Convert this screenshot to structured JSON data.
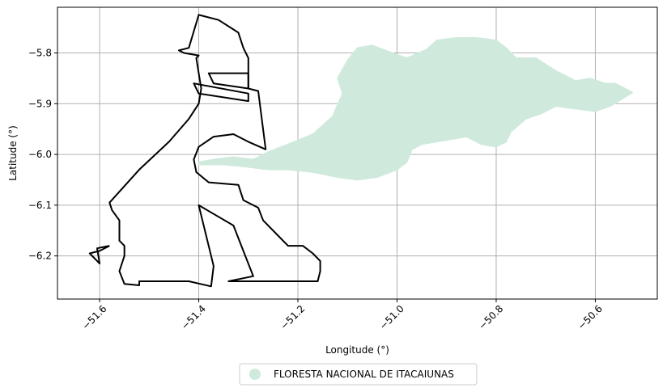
{
  "map": {
    "xlabel": "Longitude (°)",
    "ylabel": "Latitude (°)",
    "xlim": [
      -51.685,
      -50.475
    ],
    "ylim": [
      -6.285,
      -5.71
    ],
    "grid": true,
    "x_ticks": [
      -51.6,
      -51.4,
      -51.2,
      -51.0,
      -50.8,
      -50.6
    ],
    "x_tick_labels": [
      "−51.6",
      "−51.4",
      "−51.2",
      "−51.0",
      "−50.8",
      "−50.6"
    ],
    "y_ticks": [
      -5.8,
      -5.9,
      -6.0,
      -6.1,
      -6.2
    ],
    "y_tick_labels": [
      "−5.8",
      "−5.9",
      "−6.0",
      "−6.1",
      "−6.2"
    ],
    "x_tick_rotation": 45,
    "legend": {
      "placement": "below",
      "entries": [
        {
          "label": "FLORESTA NACIONAL DE ITACAIUNAS",
          "color": "#cfeadc",
          "marker": "circle"
        }
      ]
    },
    "colors": {
      "forest_fill": "#cfeadc",
      "outline": "#000000",
      "grid": "#b0b0b0"
    }
  },
  "chart_data": {
    "type": "map",
    "features": [
      {
        "name": "FLORESTA NACIONAL DE ITACAIUNAS",
        "kind": "polygon",
        "style": "filled",
        "coords": [
          [
            -51.4,
            -6.015
          ],
          [
            -51.37,
            -6.01
          ],
          [
            -51.33,
            -6.005
          ],
          [
            -51.29,
            -6.01
          ],
          [
            -51.26,
            -5.995
          ],
          [
            -51.22,
            -5.98
          ],
          [
            -51.17,
            -5.96
          ],
          [
            -51.13,
            -5.925
          ],
          [
            -51.11,
            -5.88
          ],
          [
            -51.12,
            -5.85
          ],
          [
            -51.1,
            -5.815
          ],
          [
            -51.08,
            -5.79
          ],
          [
            -51.05,
            -5.785
          ],
          [
            -51.01,
            -5.8
          ],
          [
            -50.98,
            -5.81
          ],
          [
            -50.94,
            -5.793
          ],
          [
            -50.92,
            -5.775
          ],
          [
            -50.88,
            -5.77
          ],
          [
            -50.84,
            -5.77
          ],
          [
            -50.8,
            -5.775
          ],
          [
            -50.78,
            -5.79
          ],
          [
            -50.76,
            -5.81
          ],
          [
            -50.72,
            -5.81
          ],
          [
            -50.68,
            -5.835
          ],
          [
            -50.64,
            -5.855
          ],
          [
            -50.61,
            -5.85
          ],
          [
            -50.58,
            -5.86
          ],
          [
            -50.56,
            -5.86
          ],
          [
            -50.54,
            -5.87
          ],
          [
            -50.525,
            -5.878
          ],
          [
            -50.545,
            -5.89
          ],
          [
            -50.57,
            -5.905
          ],
          [
            -50.6,
            -5.915
          ],
          [
            -50.64,
            -5.91
          ],
          [
            -50.68,
            -5.905
          ],
          [
            -50.71,
            -5.92
          ],
          [
            -50.74,
            -5.93
          ],
          [
            -50.77,
            -5.955
          ],
          [
            -50.78,
            -5.975
          ],
          [
            -50.8,
            -5.985
          ],
          [
            -50.83,
            -5.98
          ],
          [
            -50.86,
            -5.965
          ],
          [
            -50.89,
            -5.97
          ],
          [
            -50.92,
            -5.975
          ],
          [
            -50.95,
            -5.98
          ],
          [
            -50.97,
            -5.99
          ],
          [
            -50.98,
            -6.015
          ],
          [
            -51.0,
            -6.03
          ],
          [
            -51.04,
            -6.045
          ],
          [
            -51.08,
            -6.05
          ],
          [
            -51.12,
            -6.045
          ],
          [
            -51.17,
            -6.035
          ],
          [
            -51.22,
            -6.03
          ],
          [
            -51.26,
            -6.03
          ],
          [
            -51.3,
            -6.025
          ],
          [
            -51.35,
            -6.02
          ],
          [
            -51.4,
            -6.02
          ]
        ]
      },
      {
        "name": "outline-main",
        "kind": "polygon",
        "style": "outline",
        "coords": [
          [
            -51.4,
            -5.725
          ],
          [
            -51.36,
            -5.735
          ],
          [
            -51.32,
            -5.76
          ],
          [
            -51.31,
            -5.79
          ],
          [
            -51.3,
            -5.81
          ],
          [
            -51.3,
            -5.87
          ],
          [
            -51.28,
            -5.875
          ],
          [
            -51.265,
            -5.99
          ],
          [
            -51.3,
            -5.975
          ],
          [
            -51.33,
            -5.96
          ],
          [
            -51.37,
            -5.965
          ],
          [
            -51.4,
            -5.985
          ],
          [
            -51.41,
            -6.01
          ],
          [
            -51.405,
            -6.035
          ],
          [
            -51.38,
            -6.055
          ],
          [
            -51.32,
            -6.06
          ],
          [
            -51.31,
            -6.09
          ],
          [
            -51.28,
            -6.105
          ],
          [
            -51.27,
            -6.13
          ],
          [
            -51.24,
            -6.16
          ],
          [
            -51.22,
            -6.18
          ],
          [
            -51.19,
            -6.18
          ],
          [
            -51.17,
            -6.195
          ],
          [
            -51.155,
            -6.21
          ],
          [
            -51.155,
            -6.23
          ],
          [
            -51.16,
            -6.25
          ],
          [
            -51.34,
            -6.25
          ],
          [
            -51.29,
            -6.24
          ],
          [
            -51.31,
            -6.19
          ],
          [
            -51.33,
            -6.14
          ],
          [
            -51.4,
            -6.1
          ],
          [
            -51.37,
            -6.22
          ],
          [
            -51.375,
            -6.26
          ],
          [
            -51.42,
            -6.25
          ],
          [
            -51.52,
            -6.25
          ],
          [
            -51.52,
            -6.258
          ],
          [
            -51.55,
            -6.255
          ],
          [
            -51.56,
            -6.23
          ],
          [
            -51.55,
            -6.2
          ],
          [
            -51.55,
            -6.18
          ],
          [
            -51.56,
            -6.17
          ],
          [
            -51.56,
            -6.15
          ],
          [
            -51.56,
            -6.13
          ],
          [
            -51.575,
            -6.11
          ],
          [
            -51.58,
            -6.095
          ],
          [
            -51.52,
            -6.03
          ],
          [
            -51.46,
            -5.975
          ],
          [
            -51.42,
            -5.93
          ],
          [
            -51.4,
            -5.9
          ],
          [
            -51.395,
            -5.87
          ],
          [
            -51.4,
            -5.84
          ],
          [
            -51.405,
            -5.81
          ],
          [
            -51.4,
            -5.805
          ],
          [
            -51.43,
            -5.8
          ],
          [
            -51.44,
            -5.795
          ],
          [
            -51.42,
            -5.79
          ],
          [
            -51.4,
            -5.725
          ]
        ]
      },
      {
        "name": "outline-upper-block-1",
        "kind": "polygon",
        "style": "outline",
        "coords": [
          [
            -51.38,
            -5.84
          ],
          [
            -51.3,
            -5.84
          ],
          [
            -51.3,
            -5.87
          ],
          [
            -51.37,
            -5.86
          ],
          [
            -51.38,
            -5.84
          ]
        ]
      },
      {
        "name": "outline-upper-block-2",
        "kind": "polygon",
        "style": "outline",
        "coords": [
          [
            -51.41,
            -5.86
          ],
          [
            -51.3,
            -5.88
          ],
          [
            -51.3,
            -5.895
          ],
          [
            -51.4,
            -5.88
          ],
          [
            -51.41,
            -5.86
          ]
        ]
      },
      {
        "name": "outline-west-spur",
        "kind": "polyline",
        "style": "outline",
        "coords": [
          [
            -51.58,
            -6.18
          ],
          [
            -51.6,
            -6.19
          ],
          [
            -51.62,
            -6.195
          ],
          [
            -51.6,
            -6.215
          ],
          [
            -51.605,
            -6.185
          ],
          [
            -51.58,
            -6.18
          ]
        ]
      }
    ]
  }
}
